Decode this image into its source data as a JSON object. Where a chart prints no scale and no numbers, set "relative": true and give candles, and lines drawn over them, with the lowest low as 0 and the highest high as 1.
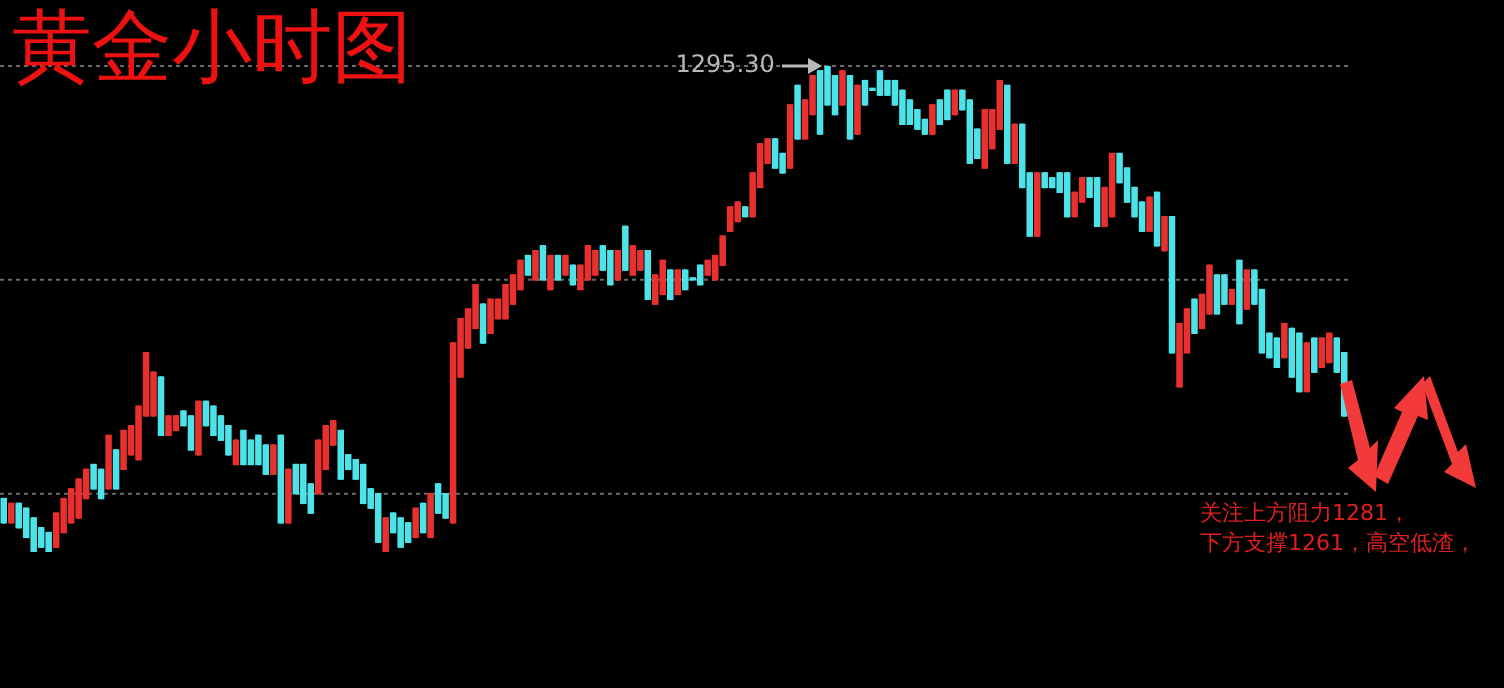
{
  "chart_data": {
    "type": "candlestick",
    "title": "黄金小时图",
    "relative": true,
    "tick_labels": false,
    "categories": [
      null,
      null,
      null,
      null,
      null,
      null,
      null,
      null,
      null,
      null,
      null,
      null,
      null,
      null,
      null,
      null,
      null,
      null,
      null,
      null,
      null,
      null,
      null,
      null,
      null,
      null,
      null,
      null,
      null,
      null,
      null,
      null,
      null,
      null,
      null,
      null,
      null,
      null,
      null,
      null,
      null,
      null,
      null,
      null,
      null,
      null,
      null,
      null,
      null,
      null,
      null,
      null,
      null,
      null,
      null,
      null,
      null,
      null,
      null,
      null,
      null,
      null,
      null,
      null,
      null,
      null,
      null,
      null,
      null,
      null,
      null,
      null,
      null,
      null,
      null,
      null,
      null,
      null,
      null,
      null,
      null,
      null,
      null,
      null,
      null,
      null,
      null,
      null,
      null,
      null,
      null,
      null,
      null,
      null,
      null,
      null,
      null,
      null,
      null,
      null,
      null,
      null,
      null,
      null,
      null,
      null,
      null,
      null,
      null,
      null,
      null,
      null,
      null,
      null,
      null,
      null,
      null,
      null,
      null,
      null,
      null,
      null,
      null,
      null,
      null,
      null,
      null,
      null,
      null,
      null,
      null,
      null,
      null,
      null,
      null,
      null,
      null,
      null,
      null,
      null,
      null,
      null,
      null,
      null,
      null,
      null,
      null,
      null,
      null,
      null,
      null,
      null,
      null,
      null,
      null,
      null,
      null,
      null,
      null,
      null,
      null,
      null,
      null,
      null,
      null,
      null,
      null,
      null,
      null,
      null,
      null,
      null,
      null,
      null,
      null,
      null,
      null,
      null,
      null,
      null
    ],
    "ohlc": [
      [
        0.11,
        0.11,
        0.06,
        0.06
      ],
      [
        0.06,
        0.1,
        0.06,
        0.1
      ],
      [
        0.1,
        0.1,
        0.05,
        0.05
      ],
      [
        0.09,
        0.09,
        0.03,
        0.03
      ],
      [
        0.07,
        0.07,
        0.0,
        0.0
      ],
      [
        0.05,
        0.05,
        0.01,
        0.01
      ],
      [
        0.04,
        0.04,
        0.0,
        0.0
      ],
      [
        0.01,
        0.08,
        0.01,
        0.08
      ],
      [
        0.04,
        0.11,
        0.04,
        0.11
      ],
      [
        0.06,
        0.13,
        0.06,
        0.13
      ],
      [
        0.07,
        0.15,
        0.07,
        0.15
      ],
      [
        0.11,
        0.17,
        0.11,
        0.17
      ],
      [
        0.18,
        0.18,
        0.13,
        0.13
      ],
      [
        0.17,
        0.17,
        0.11,
        0.11
      ],
      [
        0.13,
        0.24,
        0.13,
        0.24
      ],
      [
        0.21,
        0.21,
        0.13,
        0.13
      ],
      [
        0.17,
        0.25,
        0.17,
        0.25
      ],
      [
        0.2,
        0.26,
        0.2,
        0.26
      ],
      [
        0.19,
        0.3,
        0.19,
        0.3
      ],
      [
        0.28,
        0.41,
        0.28,
        0.41
      ],
      [
        0.28,
        0.37,
        0.28,
        0.37
      ],
      [
        0.36,
        0.36,
        0.24,
        0.24
      ],
      [
        0.24,
        0.28,
        0.24,
        0.28
      ],
      [
        0.25,
        0.28,
        0.25,
        0.28
      ],
      [
        0.29,
        0.29,
        0.26,
        0.26
      ],
      [
        0.28,
        0.28,
        0.21,
        0.21
      ],
      [
        0.2,
        0.31,
        0.2,
        0.31
      ],
      [
        0.31,
        0.31,
        0.26,
        0.26
      ],
      [
        0.3,
        0.3,
        0.24,
        0.24
      ],
      [
        0.28,
        0.28,
        0.23,
        0.23
      ],
      [
        0.26,
        0.26,
        0.2,
        0.2
      ],
      [
        0.18,
        0.23,
        0.18,
        0.23
      ],
      [
        0.25,
        0.25,
        0.18,
        0.18
      ],
      [
        0.23,
        0.23,
        0.18,
        0.18
      ],
      [
        0.24,
        0.24,
        0.18,
        0.18
      ],
      [
        0.22,
        0.22,
        0.16,
        0.16
      ],
      [
        0.16,
        0.22,
        0.16,
        0.22
      ],
      [
        0.24,
        0.24,
        0.06,
        0.06
      ],
      [
        0.06,
        0.17,
        0.06,
        0.17
      ],
      [
        0.18,
        0.18,
        0.12,
        0.12
      ],
      [
        0.18,
        0.18,
        0.1,
        0.1
      ],
      [
        0.14,
        0.14,
        0.08,
        0.08
      ],
      [
        0.12,
        0.23,
        0.12,
        0.23
      ],
      [
        0.17,
        0.26,
        0.17,
        0.26
      ],
      [
        0.22,
        0.27,
        0.22,
        0.27
      ],
      [
        0.25,
        0.25,
        0.15,
        0.15
      ],
      [
        0.2,
        0.2,
        0.17,
        0.17
      ],
      [
        0.19,
        0.19,
        0.15,
        0.15
      ],
      [
        0.18,
        0.18,
        0.1,
        0.1
      ],
      [
        0.13,
        0.13,
        0.09,
        0.09
      ],
      [
        0.12,
        0.12,
        0.02,
        0.02
      ],
      [
        0.0,
        0.07,
        0.0,
        0.07
      ],
      [
        0.08,
        0.08,
        0.04,
        0.04
      ],
      [
        0.07,
        0.07,
        0.01,
        0.01
      ],
      [
        0.06,
        0.06,
        0.02,
        0.02
      ],
      [
        0.03,
        0.09,
        0.03,
        0.09
      ],
      [
        0.1,
        0.1,
        0.04,
        0.04
      ],
      [
        0.03,
        0.12,
        0.03,
        0.12
      ],
      [
        0.14,
        0.14,
        0.08,
        0.08
      ],
      [
        0.12,
        0.12,
        0.07,
        0.07
      ],
      [
        0.06,
        0.43,
        0.06,
        0.43
      ],
      [
        0.36,
        0.48,
        0.36,
        0.48
      ],
      [
        0.42,
        0.5,
        0.42,
        0.5
      ],
      [
        0.46,
        0.55,
        0.46,
        0.55
      ],
      [
        0.51,
        0.51,
        0.43,
        0.43
      ],
      [
        0.45,
        0.52,
        0.45,
        0.52
      ],
      [
        0.48,
        0.52,
        0.48,
        0.52
      ],
      [
        0.48,
        0.55,
        0.48,
        0.55
      ],
      [
        0.51,
        0.57,
        0.51,
        0.57
      ],
      [
        0.54,
        0.6,
        0.54,
        0.6
      ],
      [
        0.61,
        0.61,
        0.57,
        0.57
      ],
      [
        0.56,
        0.62,
        0.56,
        0.62
      ],
      [
        0.63,
        0.63,
        0.56,
        0.56
      ],
      [
        0.54,
        0.61,
        0.54,
        0.61
      ],
      [
        0.61,
        0.61,
        0.56,
        0.56
      ],
      [
        0.57,
        0.61,
        0.57,
        0.61
      ],
      [
        0.59,
        0.59,
        0.55,
        0.55
      ],
      [
        0.54,
        0.59,
        0.54,
        0.59
      ],
      [
        0.56,
        0.63,
        0.56,
        0.63
      ],
      [
        0.57,
        0.62,
        0.57,
        0.62
      ],
      [
        0.63,
        0.63,
        0.58,
        0.58
      ],
      [
        0.62,
        0.62,
        0.55,
        0.55
      ],
      [
        0.56,
        0.62,
        0.56,
        0.62
      ],
      [
        0.67,
        0.67,
        0.58,
        0.58
      ],
      [
        0.57,
        0.63,
        0.57,
        0.63
      ],
      [
        0.58,
        0.62,
        0.58,
        0.62
      ],
      [
        0.62,
        0.62,
        0.52,
        0.52
      ],
      [
        0.51,
        0.57,
        0.51,
        0.57
      ],
      [
        0.53,
        0.6,
        0.53,
        0.6
      ],
      [
        0.58,
        0.58,
        0.52,
        0.52
      ],
      [
        0.53,
        0.58,
        0.53,
        0.58
      ],
      [
        0.58,
        0.58,
        0.54,
        0.54
      ],
      [
        0.56,
        0.56,
        0.56,
        0.56
      ],
      [
        0.59,
        0.59,
        0.55,
        0.55
      ],
      [
        0.57,
        0.6,
        0.57,
        0.6
      ],
      [
        0.56,
        0.61,
        0.56,
        0.61
      ],
      [
        0.59,
        0.65,
        0.59,
        0.65
      ],
      [
        0.66,
        0.71,
        0.66,
        0.71
      ],
      [
        0.68,
        0.72,
        0.68,
        0.72
      ],
      [
        0.71,
        0.71,
        0.69,
        0.69
      ],
      [
        0.69,
        0.78,
        0.69,
        0.78
      ],
      [
        0.75,
        0.84,
        0.75,
        0.84
      ],
      [
        0.8,
        0.85,
        0.8,
        0.85
      ],
      [
        0.85,
        0.85,
        0.79,
        0.79
      ],
      [
        0.82,
        0.82,
        0.78,
        0.78
      ],
      [
        0.79,
        0.92,
        0.79,
        0.92
      ],
      [
        0.96,
        0.96,
        0.85,
        0.85
      ],
      [
        0.85,
        0.93,
        0.85,
        0.93
      ],
      [
        0.9,
        0.98,
        0.9,
        0.98
      ],
      [
        0.99,
        0.99,
        0.86,
        0.86
      ],
      [
        1.0,
        1.0,
        0.92,
        0.92
      ],
      [
        0.98,
        0.98,
        0.9,
        0.9
      ],
      [
        0.92,
        0.99,
        0.92,
        0.99
      ],
      [
        0.98,
        0.98,
        0.85,
        0.85
      ],
      [
        0.86,
        0.96,
        0.86,
        0.96
      ],
      [
        0.97,
        0.97,
        0.92,
        0.92
      ],
      [
        0.95,
        0.95,
        0.95,
        0.95
      ],
      [
        0.99,
        0.99,
        0.94,
        0.94
      ],
      [
        0.97,
        0.97,
        0.94,
        0.94
      ],
      [
        0.97,
        0.97,
        0.92,
        0.92
      ],
      [
        0.95,
        0.95,
        0.88,
        0.88
      ],
      [
        0.93,
        0.93,
        0.88,
        0.88
      ],
      [
        0.91,
        0.91,
        0.87,
        0.87
      ],
      [
        0.89,
        0.89,
        0.86,
        0.86
      ],
      [
        0.86,
        0.92,
        0.86,
        0.92
      ],
      [
        0.93,
        0.93,
        0.88,
        0.88
      ],
      [
        0.95,
        0.95,
        0.89,
        0.89
      ],
      [
        0.9,
        0.95,
        0.9,
        0.95
      ],
      [
        0.95,
        0.95,
        0.91,
        0.91
      ],
      [
        0.93,
        0.93,
        0.8,
        0.8
      ],
      [
        0.87,
        0.87,
        0.81,
        0.81
      ],
      [
        0.79,
        0.91,
        0.79,
        0.91
      ],
      [
        0.83,
        0.91,
        0.83,
        0.91
      ],
      [
        0.87,
        0.97,
        0.87,
        0.97
      ],
      [
        0.96,
        0.96,
        0.8,
        0.8
      ],
      [
        0.8,
        0.88,
        0.8,
        0.88
      ],
      [
        0.88,
        0.88,
        0.75,
        0.75
      ],
      [
        0.78,
        0.78,
        0.65,
        0.65
      ],
      [
        0.65,
        0.78,
        0.65,
        0.78
      ],
      [
        0.78,
        0.78,
        0.75,
        0.75
      ],
      [
        0.77,
        0.77,
        0.75,
        0.75
      ],
      [
        0.78,
        0.78,
        0.74,
        0.74
      ],
      [
        0.78,
        0.78,
        0.69,
        0.69
      ],
      [
        0.69,
        0.74,
        0.69,
        0.74
      ],
      [
        0.72,
        0.77,
        0.72,
        0.77
      ],
      [
        0.77,
        0.77,
        0.73,
        0.73
      ],
      [
        0.77,
        0.77,
        0.67,
        0.67
      ],
      [
        0.67,
        0.75,
        0.67,
        0.75
      ],
      [
        0.69,
        0.82,
        0.69,
        0.82
      ],
      [
        0.82,
        0.82,
        0.76,
        0.76
      ],
      [
        0.79,
        0.79,
        0.72,
        0.72
      ],
      [
        0.75,
        0.75,
        0.69,
        0.69
      ],
      [
        0.72,
        0.72,
        0.66,
        0.66
      ],
      [
        0.66,
        0.73,
        0.66,
        0.73
      ],
      [
        0.74,
        0.74,
        0.63,
        0.63
      ],
      [
        0.62,
        0.69,
        0.62,
        0.69
      ],
      [
        0.69,
        0.69,
        0.41,
        0.41
      ],
      [
        0.34,
        0.47,
        0.34,
        0.47
      ],
      [
        0.41,
        0.5,
        0.41,
        0.5
      ],
      [
        0.52,
        0.52,
        0.45,
        0.45
      ],
      [
        0.46,
        0.53,
        0.46,
        0.53
      ],
      [
        0.49,
        0.59,
        0.49,
        0.59
      ],
      [
        0.57,
        0.57,
        0.49,
        0.49
      ],
      [
        0.57,
        0.57,
        0.51,
        0.51
      ],
      [
        0.51,
        0.54,
        0.51,
        0.54
      ],
      [
        0.6,
        0.6,
        0.47,
        0.47
      ],
      [
        0.5,
        0.58,
        0.5,
        0.58
      ],
      [
        0.58,
        0.58,
        0.51,
        0.51
      ],
      [
        0.54,
        0.54,
        0.41,
        0.41
      ],
      [
        0.45,
        0.45,
        0.4,
        0.4
      ],
      [
        0.44,
        0.44,
        0.38,
        0.38
      ],
      [
        0.4,
        0.47,
        0.4,
        0.47
      ],
      [
        0.46,
        0.46,
        0.36,
        0.36
      ],
      [
        0.45,
        0.45,
        0.33,
        0.33
      ],
      [
        0.33,
        0.43,
        0.33,
        0.43
      ],
      [
        0.44,
        0.44,
        0.37,
        0.37
      ],
      [
        0.38,
        0.44,
        0.38,
        0.44
      ],
      [
        0.39,
        0.45,
        0.39,
        0.45
      ],
      [
        0.44,
        0.44,
        0.37,
        0.37
      ],
      [
        0.41,
        0.41,
        0.28,
        0.28
      ]
    ],
    "colors": [
      "#4de3e8",
      "#e8312f",
      "#4de3e8",
      "#4de3e8",
      "#4de3e8",
      "#4de3e8",
      "#4de3e8",
      "#e8312f",
      "#e8312f",
      "#e8312f",
      "#e8312f",
      "#e8312f",
      "#4de3e8",
      "#4de3e8",
      "#e8312f",
      "#4de3e8",
      "#e8312f",
      "#e8312f",
      "#e8312f",
      "#e8312f",
      "#e8312f",
      "#4de3e8",
      "#e8312f",
      "#e8312f",
      "#4de3e8",
      "#4de3e8",
      "#e8312f",
      "#4de3e8",
      "#4de3e8",
      "#4de3e8",
      "#4de3e8",
      "#e8312f",
      "#4de3e8",
      "#4de3e8",
      "#4de3e8",
      "#4de3e8",
      "#e8312f",
      "#4de3e8",
      "#e8312f",
      "#4de3e8",
      "#4de3e8",
      "#4de3e8",
      "#e8312f",
      "#e8312f",
      "#e8312f",
      "#4de3e8",
      "#4de3e8",
      "#4de3e8",
      "#4de3e8",
      "#4de3e8",
      "#4de3e8",
      "#e8312f",
      "#4de3e8",
      "#4de3e8",
      "#4de3e8",
      "#e8312f",
      "#4de3e8",
      "#e8312f",
      "#4de3e8",
      "#4de3e8",
      "#e8312f",
      "#e8312f",
      "#e8312f",
      "#e8312f",
      "#4de3e8",
      "#e8312f",
      "#e8312f",
      "#e8312f",
      "#e8312f",
      "#e8312f",
      "#4de3e8",
      "#e8312f",
      "#4de3e8",
      "#e8312f",
      "#4de3e8",
      "#e8312f",
      "#4de3e8",
      "#e8312f",
      "#e8312f",
      "#e8312f",
      "#4de3e8",
      "#4de3e8",
      "#e8312f",
      "#4de3e8",
      "#e8312f",
      "#e8312f",
      "#4de3e8",
      "#e8312f",
      "#e8312f",
      "#4de3e8",
      "#e8312f",
      "#4de3e8",
      "#4de3e8",
      "#4de3e8",
      "#e8312f",
      "#e8312f",
      "#e8312f",
      "#e8312f",
      "#e8312f",
      "#4de3e8",
      "#e8312f",
      "#e8312f",
      "#e8312f",
      "#4de3e8",
      "#4de3e8",
      "#e8312f",
      "#4de3e8",
      "#e8312f",
      "#e8312f",
      "#4de3e8",
      "#4de3e8",
      "#4de3e8",
      "#e8312f",
      "#4de3e8",
      "#e8312f",
      "#4de3e8",
      "#4de3e8",
      "#4de3e8",
      "#4de3e8",
      "#4de3e8",
      "#4de3e8",
      "#4de3e8",
      "#4de3e8",
      "#4de3e8",
      "#e8312f",
      "#4de3e8",
      "#4de3e8",
      "#e8312f",
      "#4de3e8",
      "#4de3e8",
      "#4de3e8",
      "#e8312f",
      "#e8312f",
      "#e8312f",
      "#4de3e8",
      "#e8312f",
      "#4de3e8",
      "#4de3e8",
      "#e8312f",
      "#4de3e8",
      "#4de3e8",
      "#4de3e8",
      "#4de3e8",
      "#e8312f",
      "#e8312f",
      "#4de3e8",
      "#4de3e8",
      "#e8312f",
      "#e8312f",
      "#4de3e8",
      "#4de3e8",
      "#4de3e8",
      "#4de3e8",
      "#e8312f",
      "#4de3e8",
      "#e8312f",
      "#4de3e8",
      "#e8312f",
      "#e8312f",
      "#4de3e8",
      "#e8312f",
      "#e8312f",
      "#4de3e8",
      "#4de3e8",
      "#e8312f",
      "#4de3e8",
      "#e8312f",
      "#4de3e8",
      "#4de3e8",
      "#4de3e8",
      "#4de3e8",
      "#e8312f",
      "#4de3e8",
      "#4de3e8",
      "#e8312f",
      "#4de3e8",
      "#e8312f",
      "#e8312f",
      "#4de3e8",
      "#4de3e8"
    ],
    "ref_lines": [
      {
        "axis": "y",
        "value": 0.12,
        "color": "#6a6a6a",
        "line_style": "dotted"
      },
      {
        "axis": "y",
        "value": 0.56,
        "color": "#6a6a6a",
        "line_style": "dotted"
      },
      {
        "axis": "y",
        "value": 1,
        "color": "#6a6a6a",
        "line_style": "dotted"
      }
    ],
    "annotations": [
      "1295.30",
      "关注上方阻力1281，",
      "下方支撑1261，高空低渣，"
    ]
  }
}
